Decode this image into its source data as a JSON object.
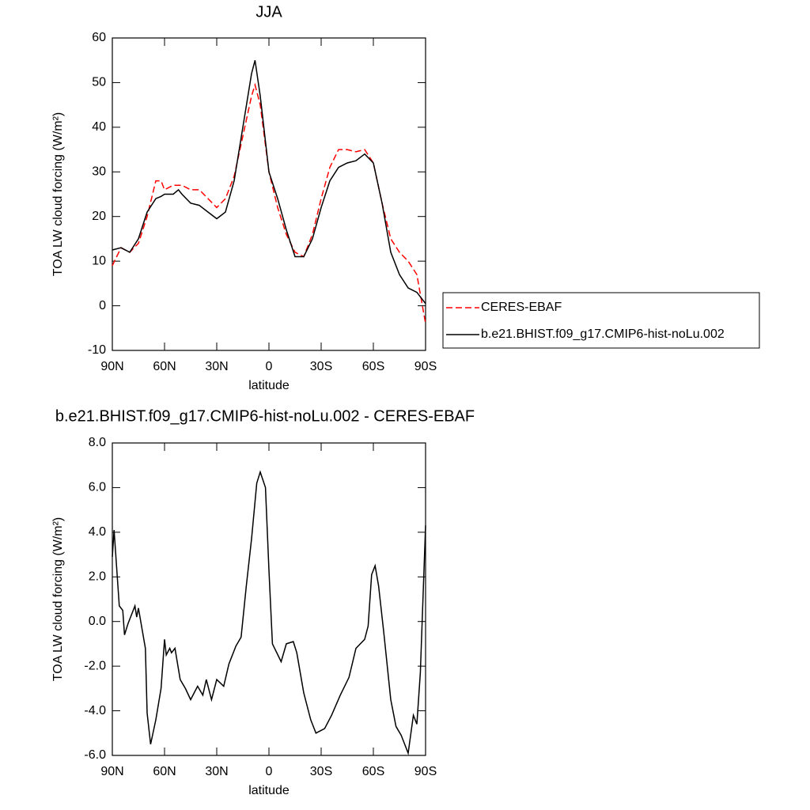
{
  "chart_data": [
    {
      "type": "line",
      "title": "JJA",
      "xlabel": "latitude",
      "ylabel": "TOA LW cloud forcing (W/m²)",
      "x": [
        90,
        85,
        80,
        75,
        70,
        65,
        62,
        60,
        55,
        52,
        50,
        45,
        40,
        35,
        30,
        25,
        20,
        15,
        10,
        8,
        5,
        0,
        -5,
        -10,
        -15,
        -20,
        -25,
        -30,
        -35,
        -40,
        -45,
        -50,
        -55,
        -60,
        -65,
        -70,
        -75,
        -80,
        -85,
        -90
      ],
      "series": [
        {
          "name": "CERES-EBAF",
          "color": "#ff0000",
          "dashed": true,
          "values": [
            9,
            13,
            12,
            14,
            20,
            28,
            28,
            26,
            27,
            27,
            27,
            26,
            26,
            24,
            22,
            24,
            29,
            38,
            47,
            49.5,
            45,
            30,
            22,
            16,
            12,
            11,
            16,
            24,
            31,
            35,
            35,
            34.5,
            35,
            32,
            23,
            15,
            12,
            10,
            7,
            -4
          ]
        },
        {
          "name": "b.e21.BHIST.f09_g17.CMIP6-hist-noLu.002",
          "color": "#000000",
          "dashed": false,
          "values": [
            12.5,
            13,
            12,
            15,
            21,
            24,
            24.5,
            25,
            25,
            26,
            25,
            23,
            22.5,
            21,
            19.5,
            21,
            28,
            40,
            52,
            55,
            47,
            30,
            24,
            17,
            11,
            11,
            15,
            22,
            28,
            31,
            32,
            32.5,
            34,
            32,
            23,
            12,
            7,
            4,
            3,
            0.5
          ]
        }
      ],
      "xlim": [
        90,
        -90
      ],
      "xticks": [
        {
          "value": 90,
          "label": "90N"
        },
        {
          "value": 60,
          "label": "60N"
        },
        {
          "value": 30,
          "label": "30N"
        },
        0,
        {
          "value": -30,
          "label": "30S"
        },
        {
          "value": -60,
          "label": "60S"
        },
        {
          "value": -90,
          "label": "90S"
        }
      ],
      "ylim": [
        -10,
        60
      ],
      "yticks": [
        -10,
        0,
        10,
        20,
        30,
        40,
        50,
        60
      ],
      "legend": "right"
    },
    {
      "type": "line",
      "title": "b.e21.BHIST.f09_g17.CMIP6-hist-noLu.002 - CERES-EBAF",
      "xlabel": "latitude",
      "ylabel": "TOA LW cloud forcing (W/m²)",
      "x": [
        90,
        89,
        86,
        84,
        83,
        81,
        77,
        76,
        75,
        71,
        70,
        68,
        65,
        62,
        60,
        59,
        57,
        56,
        54,
        51,
        48,
        45,
        41,
        38,
        36,
        33,
        30,
        26,
        23,
        19,
        16,
        13,
        10,
        7,
        5,
        2,
        0,
        -2,
        -7,
        -10,
        -14,
        -16,
        -20,
        -24,
        -27,
        -32,
        -36,
        -41,
        -46,
        -50,
        -55,
        -57,
        -59,
        -61,
        -63,
        -66,
        -70,
        -73,
        -76,
        -78,
        -80,
        -83,
        -85,
        -87,
        -89,
        -90
      ],
      "values": [
        2.9,
        4.1,
        0.7,
        0.5,
        -0.6,
        -0.1,
        0.7,
        0.2,
        0.6,
        -1.2,
        -4.1,
        -5.5,
        -4.4,
        -3,
        -0.8,
        -1.5,
        -1.2,
        -1.4,
        -1.2,
        -2.6,
        -3,
        -3.5,
        -2.9,
        -3.3,
        -2.6,
        -3.5,
        -2.6,
        -2.9,
        -1.9,
        -1.1,
        -0.7,
        1.6,
        3.7,
        6.2,
        6.7,
        6,
        2.3,
        -1,
        -1.8,
        -1,
        -0.9,
        -1.4,
        -3.2,
        -4.4,
        -5,
        -4.8,
        -4.2,
        -3.3,
        -2.5,
        -1.2,
        -0.8,
        -0.2,
        2.1,
        2.5,
        1.6,
        -0.5,
        -3.5,
        -4.7,
        -5.1,
        -5.5,
        -5.9,
        -4.2,
        -4.6,
        -2.3,
        2.1,
        4.3
      ],
      "color": "#000000",
      "xlim": [
        90,
        -90
      ],
      "xticks": [
        {
          "value": 90,
          "label": "90N"
        },
        {
          "value": 60,
          "label": "60N"
        },
        {
          "value": 30,
          "label": "30N"
        },
        0,
        {
          "value": -30,
          "label": "30S"
        },
        {
          "value": -60,
          "label": "60S"
        },
        {
          "value": -90,
          "label": "90S"
        }
      ],
      "ylim": [
        -6,
        8
      ],
      "yticks": [
        {
          "value": -6,
          "label": "-6.0"
        },
        {
          "value": -4,
          "label": "-4.0"
        },
        {
          "value": -2,
          "label": "-2.0"
        },
        {
          "value": 0,
          "label": "0.0"
        },
        {
          "value": 2,
          "label": "2.0"
        },
        {
          "value": 4,
          "label": "4.0"
        },
        {
          "value": 6,
          "label": "6.0"
        },
        {
          "value": 8,
          "label": "8.0"
        }
      ]
    }
  ]
}
